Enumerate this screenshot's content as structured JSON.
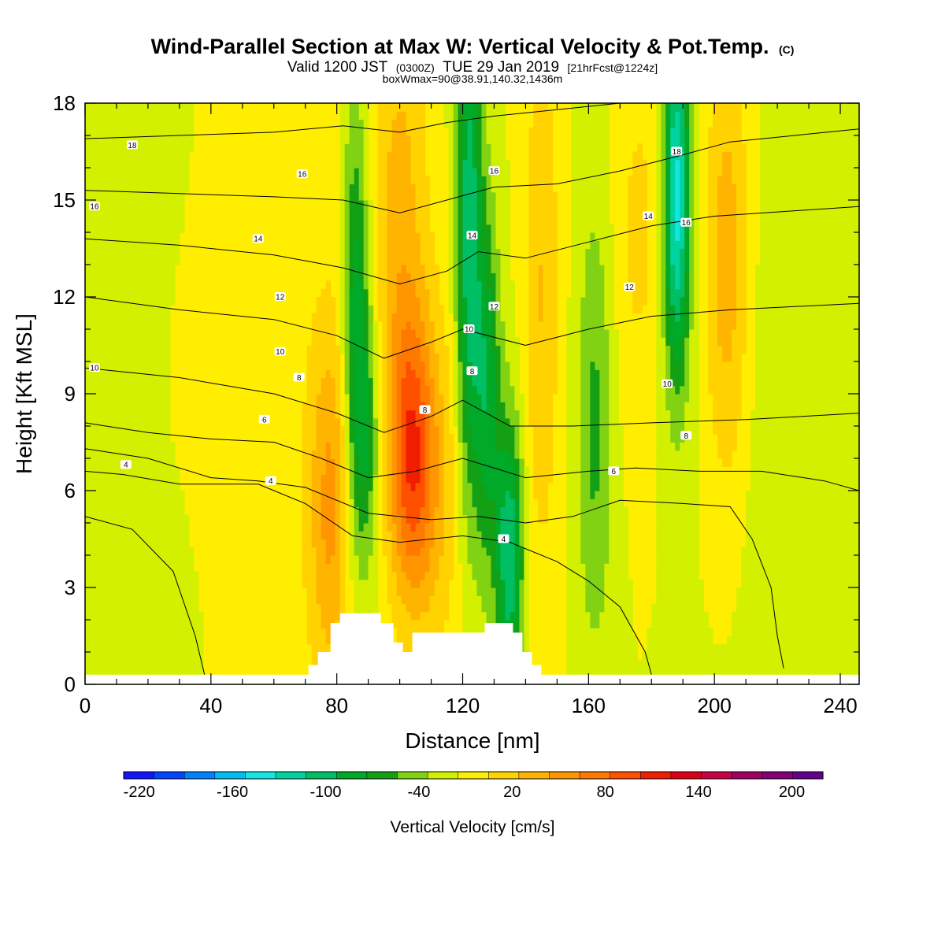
{
  "header": {
    "title": "Wind-Parallel Section at Max W: Vertical Velocity & Pot.Temp.",
    "title_suffix": "(C)",
    "subtitle_a": "Valid 1200 JST",
    "subtitle_b": "(0300Z)",
    "subtitle_c": "TUE 29 Jan 2019",
    "subtitle_d": "[21hrFcst@1224z]",
    "subline": "boxWmax=90@38.91,140.32,1436m"
  },
  "chart_data": {
    "type": "heatmap",
    "title": "Wind-Parallel Section at Max W: Vertical Velocity & Pot.Temp.",
    "xlabel": "Distance [nm]",
    "ylabel": "Height [Kft MSL]",
    "xlim": [
      0,
      246
    ],
    "ylim": [
      0,
      18
    ],
    "x_ticks": [
      0,
      40,
      80,
      120,
      160,
      200,
      240
    ],
    "y_ticks": [
      0,
      3,
      6,
      9,
      12,
      15,
      18
    ],
    "grid": false,
    "background_value": -10,
    "velocity_cells": [
      {
        "x": 5,
        "z": 1.5,
        "sx": 22,
        "sz": 4,
        "v": -18
      },
      {
        "x": 5,
        "z": 15,
        "sx": 30,
        "sz": 8,
        "v": -15
      },
      {
        "x": 45,
        "z": 10,
        "sx": 40,
        "sz": 10,
        "v": 12
      },
      {
        "x": 78,
        "z": 5.5,
        "sx": 5,
        "sz": 4,
        "v": 60
      },
      {
        "x": 86,
        "z": 11,
        "sx": 3,
        "sz": 5,
        "v": -80
      },
      {
        "x": 90,
        "z": 7.5,
        "sx": 3,
        "sz": 3,
        "v": -50
      },
      {
        "x": 100,
        "z": 14,
        "sx": 6,
        "sz": 6,
        "v": 45
      },
      {
        "x": 104,
        "z": 7,
        "sx": 5,
        "sz": 3,
        "v": 95
      },
      {
        "x": 112,
        "z": 6,
        "sx": 6,
        "sz": 4,
        "v": 30
      },
      {
        "x": 122,
        "z": 14,
        "sx": 3,
        "sz": 6,
        "v": -95
      },
      {
        "x": 128,
        "z": 9,
        "sx": 3,
        "sz": 4,
        "v": -70
      },
      {
        "x": 135,
        "z": 4,
        "sx": 3,
        "sz": 3,
        "v": -100
      },
      {
        "x": 145,
        "z": 12,
        "sx": 4,
        "sz": 6,
        "v": 40
      },
      {
        "x": 162,
        "z": 8,
        "sx": 4,
        "sz": 5,
        "v": -45
      },
      {
        "x": 176,
        "z": 14,
        "sx": 6,
        "sz": 4,
        "v": 25
      },
      {
        "x": 188,
        "z": 15,
        "sx": 3,
        "sz": 4,
        "v": -130
      },
      {
        "x": 204,
        "z": 13,
        "sx": 5,
        "sz": 5,
        "v": 55
      },
      {
        "x": 230,
        "z": 8,
        "sx": 18,
        "sz": 8,
        "v": -15
      }
    ],
    "theta_contours": [
      {
        "value": 2,
        "points": [
          [
            0,
            5.2
          ],
          [
            15,
            4.8
          ],
          [
            28,
            3.5
          ],
          [
            35,
            1.5
          ],
          [
            38,
            0.3
          ]
        ]
      },
      {
        "value": 4,
        "points": [
          [
            0,
            6.6
          ],
          [
            12,
            6.5
          ],
          [
            30,
            6.2
          ],
          [
            55,
            6.2
          ],
          [
            70,
            5.6
          ],
          [
            85,
            4.6
          ],
          [
            100,
            4.4
          ],
          [
            120,
            4.6
          ],
          [
            135,
            4.4
          ],
          [
            150,
            3.8
          ],
          [
            160,
            3.2
          ],
          [
            170,
            2.4
          ],
          [
            178,
            1.0
          ],
          [
            180,
            0.3
          ]
        ]
      },
      {
        "value": 6,
        "points": [
          [
            0,
            7.3
          ],
          [
            20,
            7.0
          ],
          [
            40,
            6.4
          ],
          [
            55,
            6.3
          ],
          [
            70,
            6.1
          ],
          [
            90,
            5.3
          ],
          [
            110,
            5.1
          ],
          [
            125,
            5.2
          ],
          [
            140,
            5.0
          ],
          [
            155,
            5.2
          ],
          [
            170,
            5.7
          ],
          [
            190,
            5.6
          ],
          [
            205,
            5.5
          ],
          [
            212,
            4.5
          ],
          [
            218,
            3.0
          ],
          [
            220,
            1.5
          ],
          [
            222,
            0.5
          ]
        ]
      },
      {
        "value": 8,
        "points": [
          [
            0,
            8.1
          ],
          [
            20,
            7.8
          ],
          [
            40,
            7.6
          ],
          [
            60,
            7.5
          ],
          [
            75,
            7.0
          ],
          [
            90,
            6.4
          ],
          [
            105,
            6.6
          ],
          [
            120,
            7.0
          ],
          [
            140,
            6.4
          ],
          [
            160,
            6.6
          ],
          [
            175,
            6.7
          ],
          [
            195,
            6.6
          ],
          [
            215,
            6.6
          ],
          [
            235,
            6.3
          ],
          [
            246,
            6.0
          ]
        ]
      },
      {
        "value": 10,
        "points": [
          [
            0,
            9.8
          ],
          [
            30,
            9.5
          ],
          [
            60,
            9.0
          ],
          [
            80,
            8.4
          ],
          [
            95,
            7.8
          ],
          [
            110,
            8.3
          ],
          [
            120,
            8.8
          ],
          [
            135,
            8.0
          ],
          [
            155,
            8.0
          ],
          [
            180,
            8.1
          ],
          [
            210,
            8.2
          ],
          [
            246,
            8.4
          ]
        ]
      },
      {
        "value": 12,
        "points": [
          [
            0,
            12.0
          ],
          [
            30,
            11.6
          ],
          [
            60,
            11.3
          ],
          [
            80,
            10.8
          ],
          [
            95,
            10.1
          ],
          [
            110,
            10.6
          ],
          [
            120,
            11.0
          ],
          [
            140,
            10.5
          ],
          [
            160,
            11.0
          ],
          [
            180,
            11.4
          ],
          [
            205,
            11.6
          ],
          [
            246,
            11.8
          ]
        ]
      },
      {
        "value": 14,
        "points": [
          [
            0,
            13.8
          ],
          [
            30,
            13.6
          ],
          [
            60,
            13.3
          ],
          [
            82,
            12.9
          ],
          [
            100,
            12.4
          ],
          [
            115,
            12.8
          ],
          [
            125,
            13.4
          ],
          [
            140,
            13.2
          ],
          [
            160,
            13.7
          ],
          [
            180,
            14.2
          ],
          [
            200,
            14.5
          ],
          [
            246,
            14.8
          ]
        ]
      },
      {
        "value": 16,
        "points": [
          [
            0,
            15.3
          ],
          [
            30,
            15.2
          ],
          [
            60,
            15.1
          ],
          [
            82,
            15.0
          ],
          [
            100,
            14.6
          ],
          [
            115,
            15.0
          ],
          [
            130,
            15.4
          ],
          [
            150,
            15.5
          ],
          [
            170,
            15.9
          ],
          [
            190,
            16.4
          ],
          [
            205,
            16.8
          ],
          [
            246,
            17.2
          ]
        ]
      },
      {
        "value": 18,
        "points": [
          [
            0,
            16.9
          ],
          [
            30,
            17.0
          ],
          [
            60,
            17.1
          ],
          [
            82,
            17.3
          ],
          [
            100,
            17.1
          ],
          [
            115,
            17.4
          ],
          [
            130,
            17.6
          ],
          [
            150,
            17.8
          ],
          [
            170,
            18.0
          ]
        ]
      }
    ],
    "contour_labels": [
      {
        "text": "18",
        "x": 15,
        "z": 16.7
      },
      {
        "text": "16",
        "x": 69,
        "z": 15.8
      },
      {
        "text": "16",
        "x": 3,
        "z": 14.8
      },
      {
        "text": "16",
        "x": 130,
        "z": 15.9
      },
      {
        "text": "14",
        "x": 55,
        "z": 13.8
      },
      {
        "text": "14",
        "x": 123,
        "z": 13.9
      },
      {
        "text": "14",
        "x": 179,
        "z": 14.5
      },
      {
        "text": "16",
        "x": 191,
        "z": 14.3
      },
      {
        "text": "18",
        "x": 188,
        "z": 16.5
      },
      {
        "text": "12",
        "x": 62,
        "z": 12.0
      },
      {
        "text": "12",
        "x": 130,
        "z": 11.7
      },
      {
        "text": "12",
        "x": 173,
        "z": 12.3
      },
      {
        "text": "10",
        "x": 62,
        "z": 10.3
      },
      {
        "text": "10",
        "x": 122,
        "z": 11.0
      },
      {
        "text": "10",
        "x": 3,
        "z": 9.8
      },
      {
        "text": "10",
        "x": 185,
        "z": 9.3
      },
      {
        "text": "8",
        "x": 68,
        "z": 9.5
      },
      {
        "text": "8",
        "x": 123,
        "z": 9.7
      },
      {
        "text": "8",
        "x": 108,
        "z": 8.5
      },
      {
        "text": "8",
        "x": 191,
        "z": 7.7
      },
      {
        "text": "6",
        "x": 57,
        "z": 8.2
      },
      {
        "text": "6",
        "x": 168,
        "z": 6.6
      },
      {
        "text": "4",
        "x": 13,
        "z": 6.8
      },
      {
        "text": "4",
        "x": 59,
        "z": 6.3
      },
      {
        "text": "4",
        "x": 133,
        "z": 4.5
      }
    ],
    "terrain": [
      [
        0,
        0.3
      ],
      [
        71,
        0.3
      ],
      [
        71,
        0.6
      ],
      [
        74,
        0.6
      ],
      [
        74,
        1.0
      ],
      [
        78,
        1.0
      ],
      [
        78,
        1.9
      ],
      [
        81,
        1.9
      ],
      [
        81,
        2.2
      ],
      [
        94,
        2.2
      ],
      [
        94,
        1.9
      ],
      [
        98,
        1.9
      ],
      [
        98,
        1.3
      ],
      [
        101,
        1.3
      ],
      [
        101,
        1.0
      ],
      [
        104,
        1.0
      ],
      [
        104,
        1.6
      ],
      [
        127,
        1.6
      ],
      [
        127,
        1.9
      ],
      [
        136,
        1.9
      ],
      [
        136,
        1.6
      ],
      [
        139,
        1.6
      ],
      [
        139,
        1.0
      ],
      [
        142,
        1.0
      ],
      [
        142,
        0.6
      ],
      [
        145,
        0.6
      ],
      [
        145,
        0.3
      ],
      [
        246,
        0.3
      ]
    ]
  },
  "colorbar": {
    "title": "Vertical Velocity [cm/s]",
    "min": -230,
    "max": 220,
    "step": 20,
    "labels": [
      "-220",
      "-160",
      "-100",
      "-40",
      "20",
      "80",
      "140",
      "200"
    ],
    "colors": [
      "#1414ff",
      "#0046ff",
      "#0082ff",
      "#00bef0",
      "#14e6e6",
      "#00d2a0",
      "#00be64",
      "#00aa28",
      "#14a014",
      "#82d214",
      "#d2f000",
      "#ffee00",
      "#ffd200",
      "#ffb400",
      "#ff9600",
      "#ff7800",
      "#ff5000",
      "#f01e00",
      "#dc0014",
      "#c80046",
      "#a00064",
      "#820078",
      "#64008c"
    ]
  }
}
